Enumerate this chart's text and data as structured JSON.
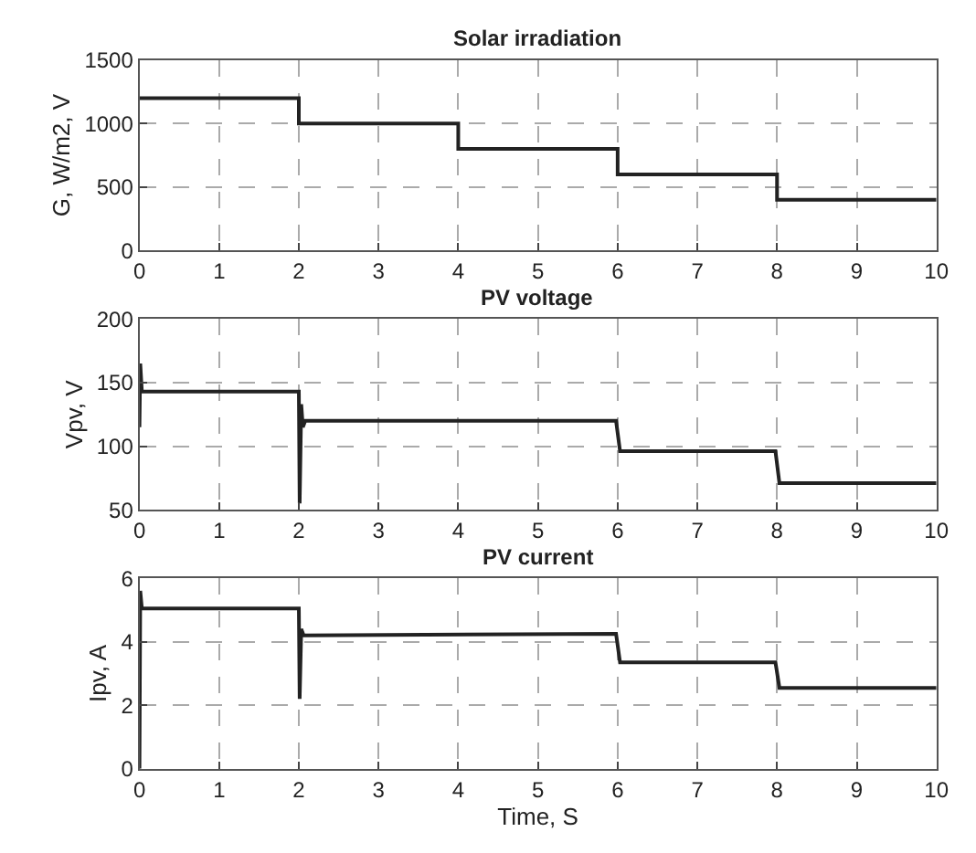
{
  "chart_data": [
    {
      "type": "line",
      "title": "Solar irradiation",
      "ylabel": "G, W/m2, V",
      "x": [
        0,
        2,
        2,
        4,
        4,
        6,
        6,
        8,
        8,
        10
      ],
      "series": [
        {
          "color": "#222222",
          "values": [
            1200,
            1200,
            1000,
            1000,
            800,
            800,
            600,
            600,
            400,
            400
          ]
        }
      ],
      "xlim": [
        0,
        10
      ],
      "xticks": [
        0,
        1,
        2,
        3,
        4,
        5,
        6,
        7,
        8,
        9,
        10
      ],
      "ylim": [
        0,
        1500
      ],
      "yticks": [
        0,
        500,
        1000,
        1500
      ],
      "grid": true
    },
    {
      "type": "line",
      "title": "PV voltage",
      "ylabel": "Vpv, V",
      "x": [
        0,
        0.01,
        0.03,
        1.98,
        2.0,
        2.01,
        2.03,
        2.05,
        2.08,
        5.98,
        6.03,
        7.98,
        8.03,
        10
      ],
      "series": [
        {
          "color": "#222222",
          "values": [
            115,
            165,
            143,
            143,
            143,
            55,
            133,
            115,
            120,
            120,
            96,
            96,
            71,
            71
          ]
        }
      ],
      "xlim": [
        0,
        10
      ],
      "xticks": [
        0,
        1,
        2,
        3,
        4,
        5,
        6,
        7,
        8,
        9,
        10
      ],
      "ylim": [
        50,
        200
      ],
      "yticks": [
        50,
        100,
        150,
        200
      ],
      "grid": true
    },
    {
      "type": "line",
      "title": "PV current",
      "ylabel": "Ipv, A",
      "xlabel": "Time, S",
      "x": [
        0,
        0.01,
        0.03,
        1.98,
        2.0,
        2.01,
        2.03,
        2.06,
        5.98,
        6.03,
        7.98,
        8.03,
        10
      ],
      "series": [
        {
          "color": "#222222",
          "values": [
            0,
            5.6,
            5.05,
            5.05,
            5.05,
            2.2,
            4.4,
            4.2,
            4.25,
            3.35,
            3.35,
            2.55,
            2.55
          ]
        }
      ],
      "xlim": [
        0,
        10
      ],
      "xticks": [
        0,
        1,
        2,
        3,
        4,
        5,
        6,
        7,
        8,
        9,
        10
      ],
      "ylim": [
        0,
        6
      ],
      "yticks": [
        0,
        2,
        4,
        6
      ],
      "grid": true
    }
  ]
}
